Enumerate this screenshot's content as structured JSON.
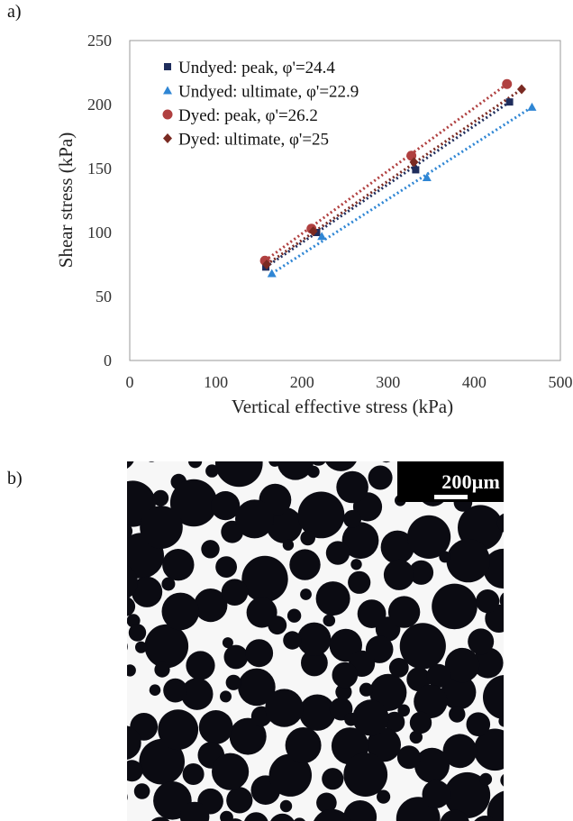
{
  "panels": {
    "a_label": "a)",
    "b_label": "b)"
  },
  "chart_data": {
    "type": "scatter",
    "xlabel": "Vertical effective stress (kPa)",
    "ylabel": "Shear stress (kPa)",
    "xlim": [
      0,
      500
    ],
    "ylim": [
      0,
      250
    ],
    "xticks": [
      0,
      100,
      200,
      300,
      400,
      500
    ],
    "yticks": [
      0,
      50,
      100,
      150,
      200,
      250
    ],
    "grid": false,
    "legend_position": "top-left",
    "series": [
      {
        "name": "Undyed: peak, φ'=24.4",
        "marker": "square",
        "color": "#1f2d5c",
        "x": [
          158,
          217,
          332,
          441
        ],
        "y": [
          73,
          100,
          149,
          202
        ],
        "trendline": {
          "x": [
            158,
            441
          ],
          "y": [
            73,
            202
          ]
        }
      },
      {
        "name": "Undyed: ultimate, φ'=22.9",
        "marker": "triangle",
        "color": "#2f86d4",
        "x": [
          165,
          223,
          345,
          467
        ],
        "y": [
          68,
          97,
          143,
          198
        ],
        "trendline": {
          "x": [
            165,
            467
          ],
          "y": [
            68,
            198
          ]
        }
      },
      {
        "name": "Dyed: peak, φ'=26.2",
        "marker": "circle",
        "color": "#b04040",
        "x": [
          157,
          211,
          327,
          438
        ],
        "y": [
          78,
          103,
          160,
          216
        ],
        "trendline": {
          "x": [
            157,
            438
          ],
          "y": [
            78,
            216
          ]
        }
      },
      {
        "name": "Dyed: ultimate, φ'=25",
        "marker": "diamond",
        "color": "#7a2a22",
        "x": [
          159,
          213,
          330,
          455
        ],
        "y": [
          75,
          101,
          155,
          212
        ],
        "trendline": {
          "x": [
            159,
            455
          ],
          "y": [
            75,
            212
          ]
        }
      }
    ]
  },
  "micrograph": {
    "scale_label": "200μm"
  }
}
